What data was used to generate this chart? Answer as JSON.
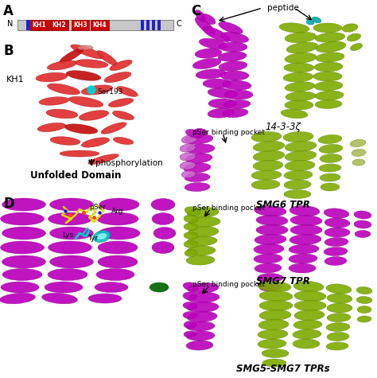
{
  "panel_A_label": "A",
  "panel_B_label": "B",
  "panel_C_label": "C",
  "panel_D_label": "D",
  "domain_bar_color": "#c8c8c8",
  "kh_box_color": "#cc0000",
  "kh_labels": [
    "KH1",
    "KH2",
    "KH3",
    "KH4"
  ],
  "blue_stripe_color": "#2222cc",
  "N_label": "N",
  "C_label": "C",
  "KH1_label": "KH1",
  "ser_label": "Ser193",
  "phosphorylation_text": "phosphorylation",
  "unfolded_text": "Unfolded Domain",
  "label_14_3_3": "14-3-3ζ",
  "label_SMG6": "SMG6 TPR",
  "label_SMG7": "SMG7 TPR",
  "label_SMG5_SMG7": "SMG5-SMG7 TPRs",
  "peptide_label": "peptide",
  "pSer_label_C": "pSer binding pocket",
  "pSer_label_D": "pSer",
  "Arg_label": "Arg",
  "Lys_label": "Lys",
  "Tyr_label": "Tyr",
  "bg_color": "#ffffff",
  "protein_red_light": "#e03030",
  "protein_red_dark": "#9b0000",
  "protein_red_mid": "#c41010",
  "protein_purple": "#bb00bb",
  "protein_purple_dark": "#880088",
  "protein_green": "#7daa00",
  "protein_green_dark": "#5a8000",
  "protein_cyan": "#00cccc",
  "protein_yellow": "#dddd00",
  "protein_yellow_dark": "#aaaa00"
}
